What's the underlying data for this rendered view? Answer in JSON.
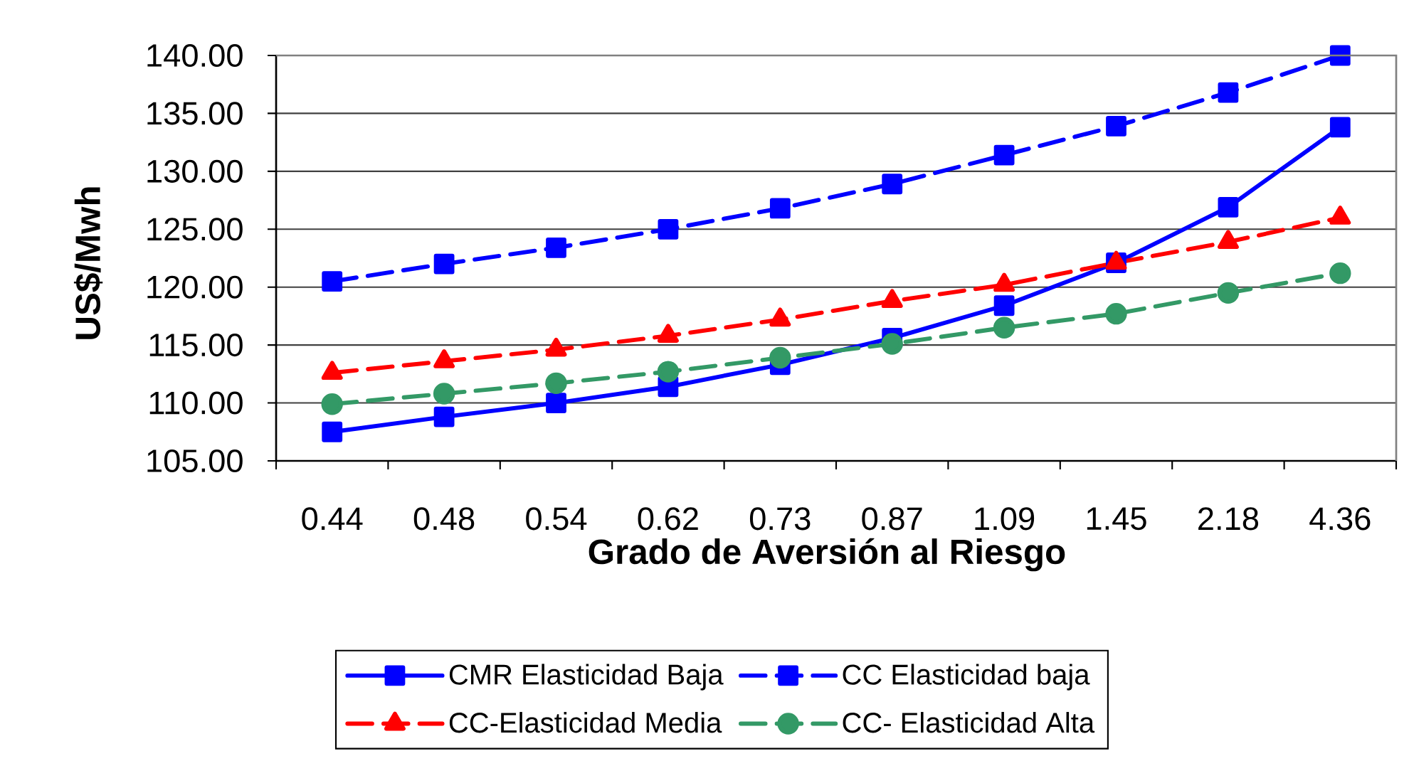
{
  "chart_data": {
    "type": "line",
    "xlabel": "Grado de Aversión al Riesgo",
    "ylabel": "US$/Mwh",
    "categories": [
      "0.44",
      "0.48",
      "0.54",
      "0.62",
      "0.73",
      "0.87",
      "1.09",
      "1.45",
      "2.18",
      "4.36"
    ],
    "ylim": [
      105,
      140
    ],
    "yticks": [
      {
        "value": 105,
        "label": "105.00"
      },
      {
        "value": 110,
        "label": "110.00"
      },
      {
        "value": 115,
        "label": "115.00"
      },
      {
        "value": 120,
        "label": "120.00"
      },
      {
        "value": 125,
        "label": "125.00"
      },
      {
        "value": 130,
        "label": "130.00"
      },
      {
        "value": 135,
        "label": "135.00"
      },
      {
        "value": 140,
        "label": "140.00"
      }
    ],
    "grid": "y",
    "legend": "bottom",
    "series": [
      {
        "name": "CMR Elasticidad Baja",
        "color": "#0000ff",
        "marker": "square",
        "line_style": "solid",
        "values": [
          107.5,
          108.8,
          110.0,
          111.4,
          113.3,
          115.6,
          118.4,
          122.1,
          126.9,
          133.8
        ]
      },
      {
        "name": "CC Elasticidad baja",
        "color": "#0000ff",
        "marker": "square",
        "line_style": "dashed",
        "values": [
          120.5,
          122.0,
          123.4,
          125.0,
          126.8,
          128.9,
          131.4,
          133.9,
          136.8,
          140.0
        ]
      },
      {
        "name": "CC-Elasticidad Media",
        "color": "#ff0000",
        "marker": "triangle",
        "line_style": "dashed",
        "values": [
          112.6,
          113.6,
          114.6,
          115.8,
          117.2,
          118.8,
          120.2,
          122.1,
          123.9,
          126.0
        ]
      },
      {
        "name": "CC- Elasticidad Alta",
        "color": "#339966",
        "marker": "circle",
        "line_style": "dashed",
        "values": [
          109.9,
          110.8,
          111.7,
          112.7,
          113.9,
          115.1,
          116.5,
          117.7,
          119.5,
          121.2
        ]
      }
    ]
  }
}
